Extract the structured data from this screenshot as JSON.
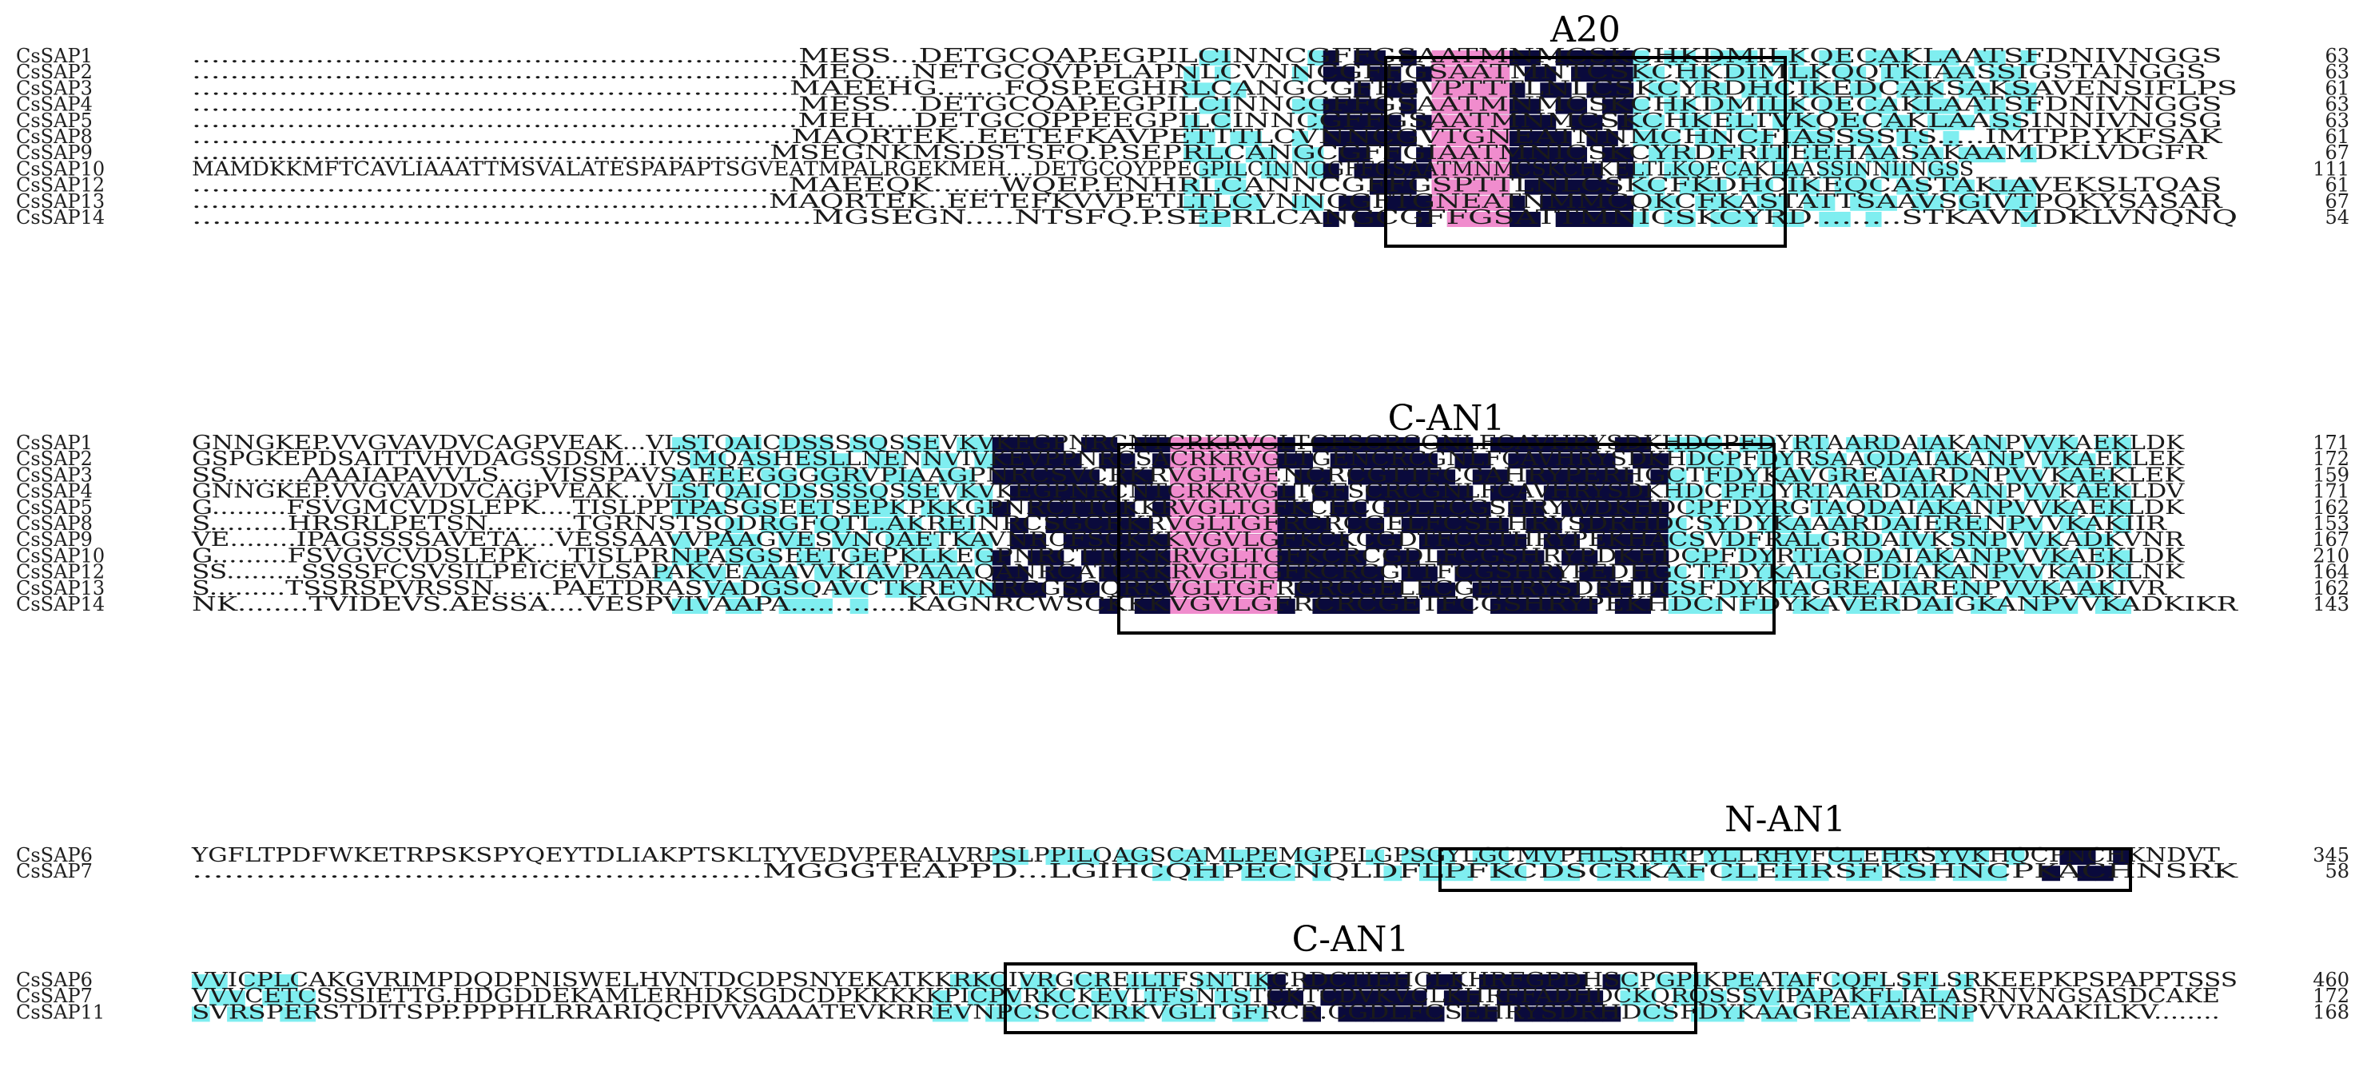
{
  "colors": {
    "identical": "#0a0a3c",
    "similar": "#f08ccd",
    "conserved": "#7feef0"
  },
  "blocks": [
    {
      "rows": [
        {
          "name": "CsSAP1",
          "seq": "................................................................MESS...DETGCQAP.EGPILCINNCGFFGSAATMNMCSKCHKDMILKQECAKLAATSFDNIVNGGS",
          "num": "63"
        },
        {
          "name": "CsSAP2",
          "seq": "................................................................MEQ....NETGCQVPPLAPNLCVNNCGFFGSAATMNTCSKCHKDIMLKQQTKIAASSIGSTANGGS",
          "num": "63"
        },
        {
          "name": "CsSAP3",
          "seq": "..............................................................MAEEHG.......FQSP.EGHRLCANGCGFFGVPTTTLNLCSKCYRDHCIKEDCAKSAKSAVENSIFLPS",
          "num": "61"
        },
        {
          "name": "CsSAP4",
          "seq": "................................................................MESS...DETGCQAP.EGPILCINNCGFFGSAATMNMCSKCHKDMILKQECAKLAATSFDNIVNGGS",
          "num": "63"
        },
        {
          "name": "CsSAP5",
          "seq": "................................................................MEH....DETGCQPPEEGPILCINNCGFFGSAATMNMCSKCHKELTVKQECAKLAASSINNIVNGSG",
          "num": "63"
        },
        {
          "name": "CsSAP8",
          "seq": "..............................................................MAQRTEK..EETEFKAVPETTTLCVNNCGVTGNEATNNMCHNCFIASSSSTS.....IMTPP.YKFSAK",
          "num": "61"
        },
        {
          "name": "CsSAP9",
          "seq": "..............................................................MSEGNKMSDSTSFQ.P.SEPRLCANGCGFFGIAATMNICSKCYRDFRITEEHAASAKAAMDKLVDGFR",
          "num": "67"
        },
        {
          "name": "CsSAP10",
          "seq": "MAMDKKMFTCAVLIAAATTMSVALATESPAPAPTSGVEATMPALRGEKMEH....DETGCQYPPEGPILCINNCGFFGSAATMNMCSKCHKELTLKQECAKLAASSINNIINGSS",
          "num": "111"
        },
        {
          "name": "CsSAP12",
          "seq": "..............................................................MAEEQK.......WQEP.ENHRLCANNCGFFGSPTTLNLCSKCFKDHCIKEQCASTAKIAVEKSLTQAS",
          "num": "61"
        },
        {
          "name": "CsSAP13",
          "seq": "..............................................................MAQRTEK..EETEFKVVPETLTLCVNNCGFTGNEATNMMCQKCFKASTATTSAAVSGIVTPQKYSASAR",
          "num": "67"
        },
        {
          "name": "CsSAP14",
          "seq": "..............................................................MGSEGN.....NTSFQ.P.SEPRLCANGCGFFGSATTMNICSKCYRD.........STKAVMDKLVNQNQ",
          "num": "54"
        }
      ]
    },
    {
      "rows": [
        {
          "name": "CsSAP1",
          "seq": "GNNGKEP.VVGVAVDVCAGPVEAK...VLSTQAICDSSSSQSSEVKVKEGPNRCNTCRKRVGLTGFSCRCGNLFCAVHRYSDKHDCPFDYRTAARDAIAKANPVVKAEKLDK",
          "num": "171"
        },
        {
          "name": "CsSAP2",
          "seq": "GSPGKEPDSAITTVHVDAGSSDSM...IVSMQASHESLLNENNVIVKEVPPNRCSACRKRVGLTGENCRCGNLFCAVHRYSDKHDCPFDYRSAAQDAIAKANPVVKAEKLEK",
          "num": "172"
        },
        {
          "name": "CsSAP3",
          "seq": "SS.........AAAIAPAVVLS.....VISSPAVSAEEEGGGGRVPIAAGPNRCSVCRKRVGLTGENCRCGTTFCGAHRYPERHGCTFDYKAVGREAIARDNPVVKAEKLEK",
          "num": "159"
        },
        {
          "name": "CsSAP4",
          "seq": "GNNGKEP.VVGVAVDVCAGPVEAK...VLSTQAICDSSSSQSSEVKVKEGPNRCNTCRKRVGLTGFSCRCGNLFCAVHRYSDKHDCPFDYRTAARDAIAKANPVVKAEKLDV",
          "num": "171"
        },
        {
          "name": "CsSAP5",
          "seq": "G.........FSVGMCVDSLEPK....TISLPPTPASGSEETSEPKPKKGPNRCTTCKKRVGLTGFKCHCGDLFCGSHRYWDKHDCPFDYRGTAQDAIAKANPVVKAEKLDK",
          "num": "162"
        },
        {
          "name": "CsSAP8",
          "seq": "S.........HRSRLPETSN..........TGRNSTSQDRGFQTL.AKREINRCSGCRKRVGLTGFRCRCGELFCSHHRYSDRHDCSYDYKAAARDAIERENPVVKAKIIR",
          "num": "153"
        },
        {
          "name": "CsSAP9",
          "seq": "VE........IPAGSSSSAVETA....VESSAAVVPAAGVESVNQAETKAVNRCFSCKKKVGVLGFKCKCGDTFCGTHRYPEKHACSVDFRALGRDAIVKSNPVVKADKVNR",
          "num": "167"
        },
        {
          "name": "CsSAP10",
          "seq": "G.........FSVGVCVDSLEPK....TISLPRNPASGSEETGEPKLKEGPNRCTTCKKRVGLTGFKCRCGDLFCGSHRYPDKHDCPFDYRTIAQDAIAKANPVVKAEKLDK",
          "num": "210"
        },
        {
          "name": "CsSAP12",
          "seq": "SS.........SSSSFCSVSILPEICEVLSAPAKVEAAAVVKIAVPAAAQANRCATCRKRVGLTGFKCRCGTTFCGSHRYPEDHGCTFDYKALGKEDIAKANPVVKADKLNK",
          "num": "164"
        },
        {
          "name": "CsSAP13",
          "seq": "S.........TSSRSPVRSSN.......PAETDRASVADGSQAVCTKREVNRCGSCQRKVGLTGFRCRCGELFCGEHRYSDRHDCSFDYKTAGREAIARENPVVKAAKIVR",
          "num": "162"
        },
        {
          "name": "CsSAP14",
          "seq": "NK........TVIDEVS.AESSA....VESPVIVAAPA.............KAGNRCWSCKKKVGVLGFRCRCGETFCGSHRYPEKHDCNFDYKAVERDAIGKANPVVKADKIKR",
          "num": "143"
        }
      ]
    },
    {
      "rows": [
        {
          "name": "CsSAP6",
          "seq": "YGFLTPDFWKETRPSKSPYQEYTDLIAKPTSKLTYVEDVPERALVRPSLPPILQAGSCAMLPEMGPELGPSGYLGCMVPHLSRHRPYLLRHVFCLEHRSYVKHQCPNCHKNDVT",
          "num": "345"
        },
        {
          "name": "CsSAP7",
          "seq": "......................................................MGGGTEAPPD...LGIHCQHPECNQLDFLPFKCDSCRKAFCLEHRSFKSHNCPKACHNSRK",
          "num": "58"
        }
      ]
    },
    {
      "rows": [
        {
          "name": "CsSAP6",
          "seq": "VVICPLCAKGVRIMPDQDPNISWELHVNTDCDPSNYEKATKKRKCIVRGCREILTFSNTIKCRDCTIEHCLKHRFGPDHSCPGPIKPEATAFCQFLSFLSRKEEPKPSPAPPTSSS",
          "num": "460"
        },
        {
          "name": "CsSAP7",
          "seq": "VVVCETCSSSIETTG.HDGDDEKAMLERHDKSGDCDPKKKKKPICPVRKCKEVLTFSNTSTCKTCDVKVCLKHRFFADHDCKQRQSSSVIPAPAKFLIALASRNVNGSASDCAKE",
          "num": "172"
        },
        {
          "name": "CsSAP11",
          "seq": "SVRSPERSTDITSPP.PPPHLRRARIQCPIVVAAAATEVKRREVNPCSCCKRKVGLTGFRCR.CGDLFCSEHRYSDRHDCSFDYKAAGREAIARENPVVRAAKILKV........",
          "num": "168"
        }
      ]
    }
  ],
  "domains": [
    {
      "label": "A20"
    },
    {
      "label": "C-AN1"
    },
    {
      "label": "N-AN1"
    },
    {
      "label": "C-AN1"
    }
  ]
}
